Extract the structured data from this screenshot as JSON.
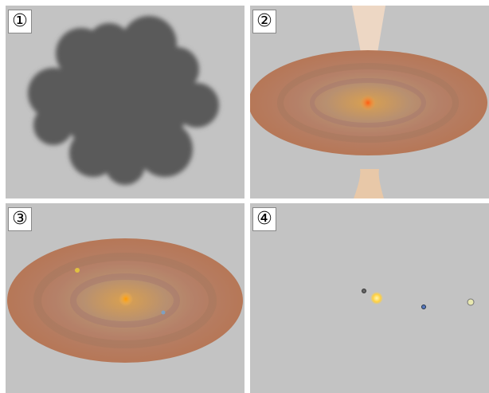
{
  "panels": [
    {
      "label": "①"
    },
    {
      "label": "②"
    },
    {
      "label": "③"
    },
    {
      "label": "④"
    }
  ]
}
